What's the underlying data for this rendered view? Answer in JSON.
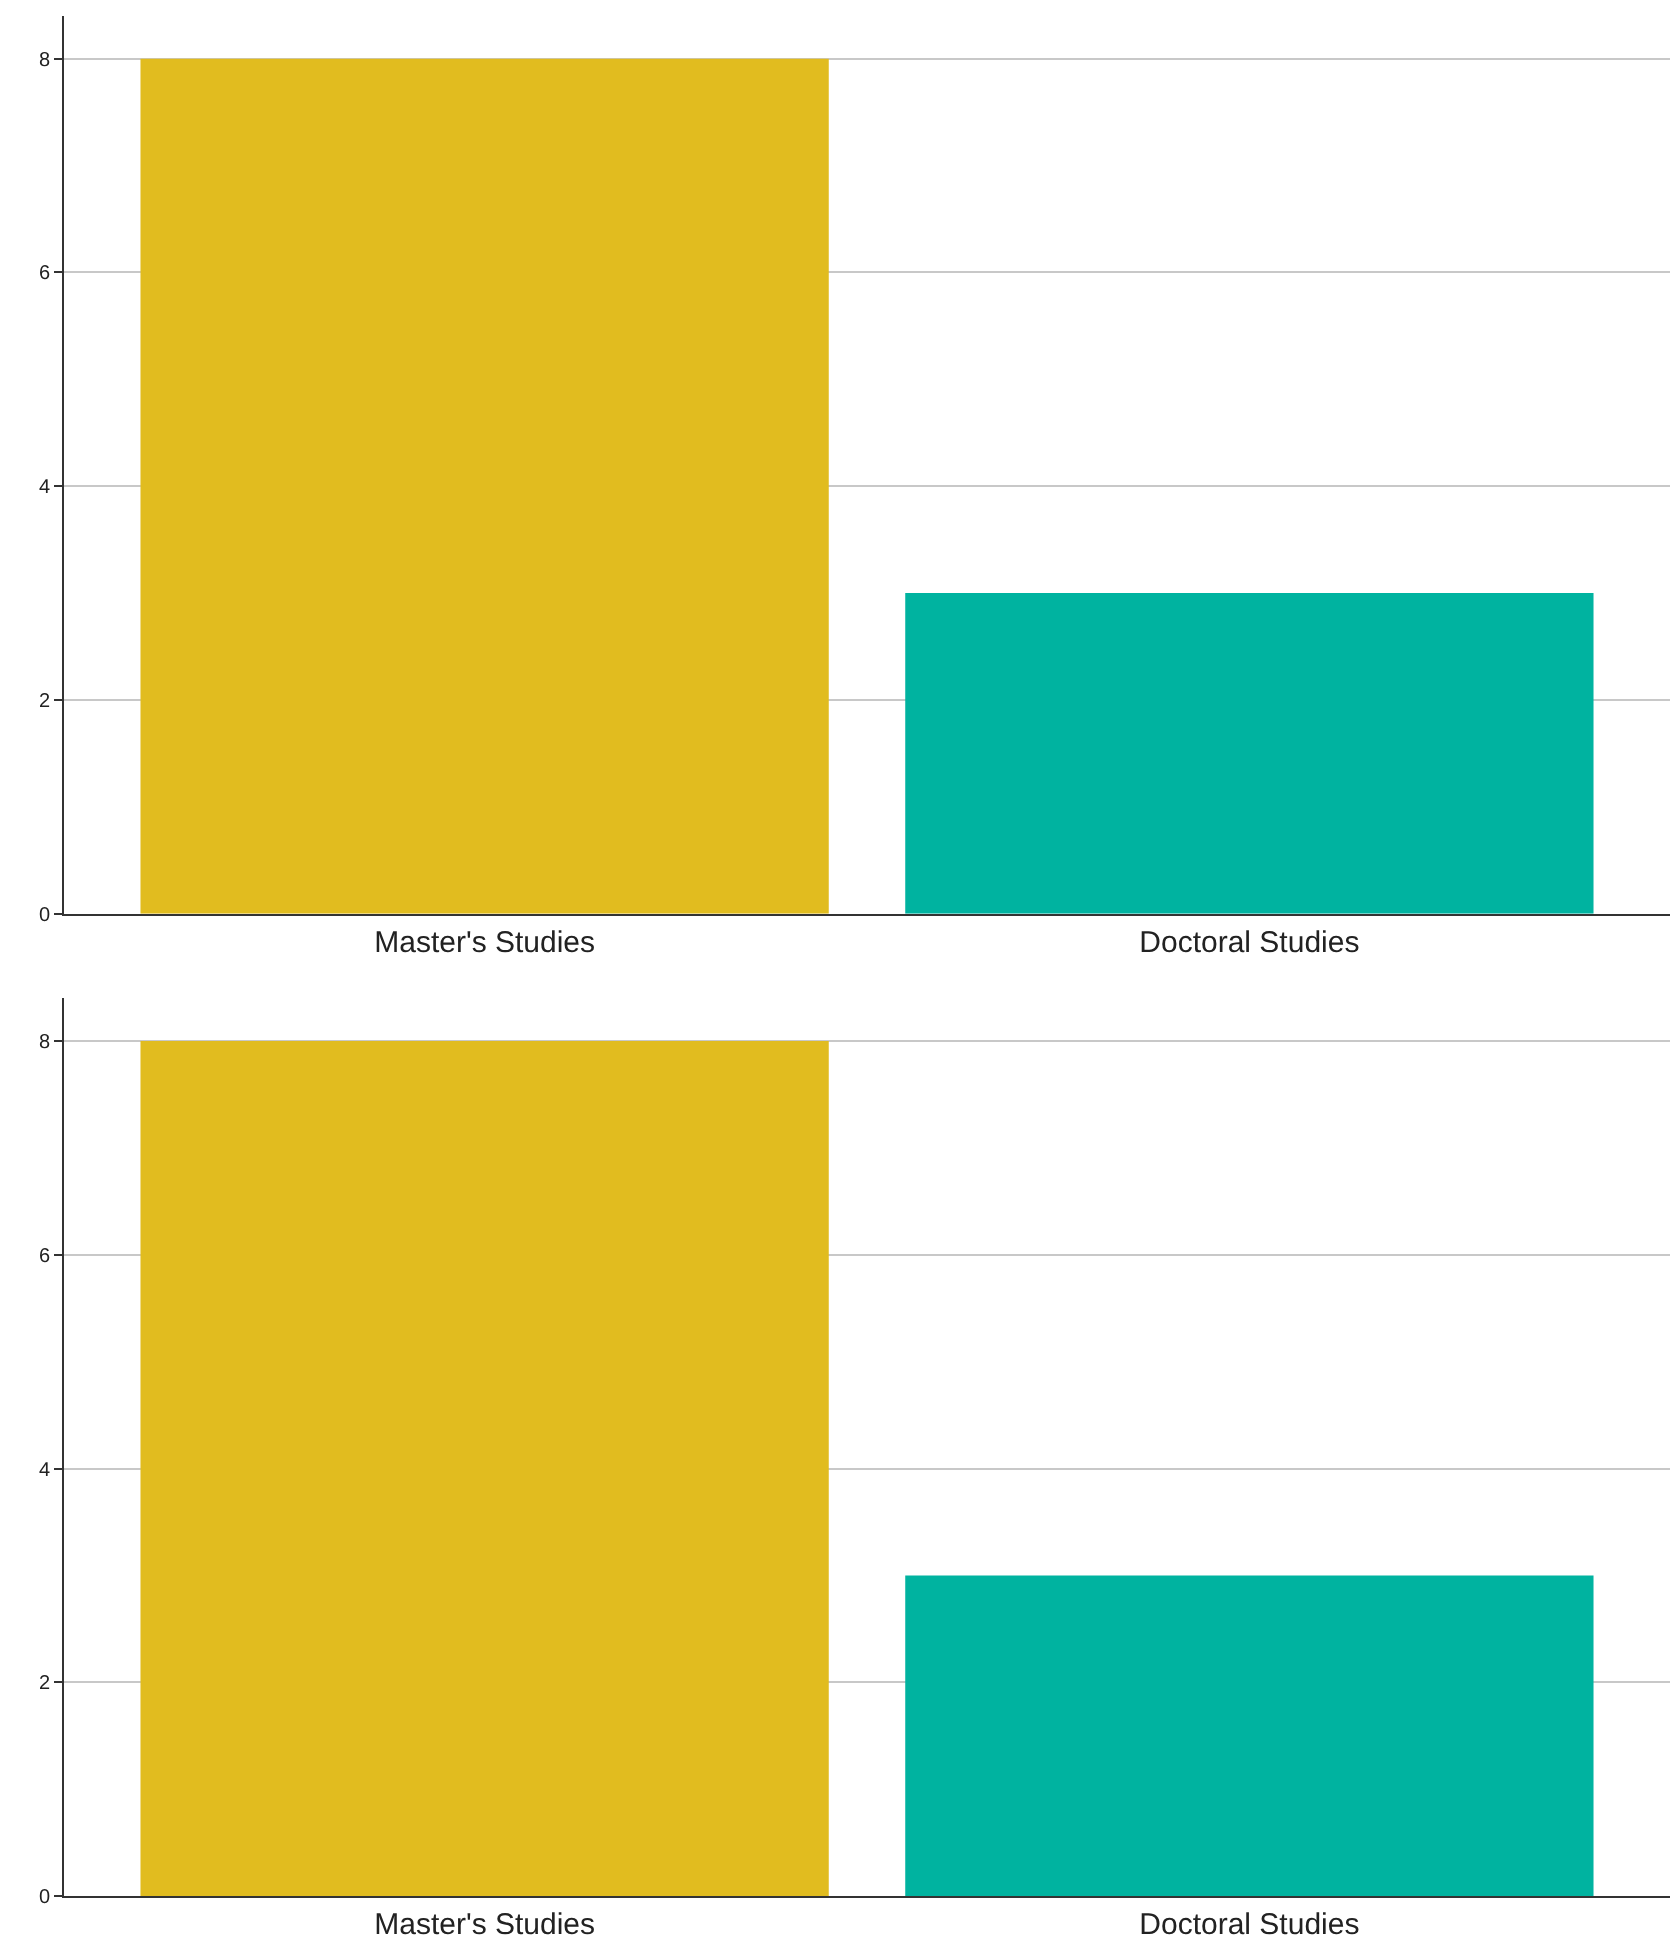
{
  "chart_data": [
    {
      "type": "bar",
      "categories": [
        "Master's Studies",
        "Doctoral Studies"
      ],
      "values": [
        8,
        3
      ],
      "colors": [
        "#e1bc1f",
        "#00b3a0"
      ],
      "ylim": [
        0,
        8.4
      ],
      "yticks": [
        0,
        2,
        4,
        6,
        8
      ],
      "grid": "y"
    },
    {
      "type": "bar",
      "categories": [
        "Master's Studies",
        "Doctoral Studies"
      ],
      "values": [
        8,
        3
      ],
      "colors": [
        "#e1bc1f",
        "#00b3a0"
      ],
      "ylim": [
        0,
        8.4
      ],
      "yticks": [
        0,
        2,
        4,
        6,
        8
      ],
      "grid": "y"
    }
  ]
}
